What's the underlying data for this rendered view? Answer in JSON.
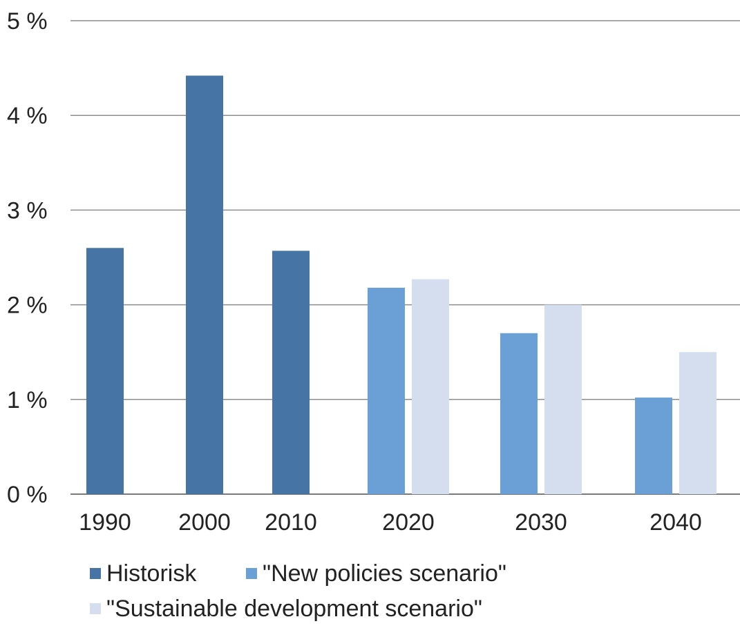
{
  "chart_data": {
    "type": "bar",
    "categories": [
      "1990",
      "2000",
      "2010",
      "2020",
      "2030",
      "2040"
    ],
    "series": [
      {
        "name": "Historisk",
        "color": "#4674a5",
        "values": [
          2.6,
          4.42,
          2.57,
          null,
          null,
          null
        ]
      },
      {
        "name": "\"New policies scenario\"",
        "color": "#6aa0d6",
        "values": [
          null,
          null,
          null,
          2.18,
          1.7,
          1.02
        ]
      },
      {
        "name": "\"Sustainable development scenario\"",
        "color": "#d4deef",
        "values": [
          null,
          null,
          null,
          2.27,
          2.0,
          1.5
        ]
      }
    ],
    "ylim": [
      0,
      5
    ],
    "yticks": [
      "0 %",
      "1 %",
      "2 %",
      "3 %",
      "4 %",
      "5 %"
    ],
    "xlabel": "",
    "ylabel": "",
    "title": "",
    "grid": "horizontal",
    "legend_position": "bottom-left"
  }
}
